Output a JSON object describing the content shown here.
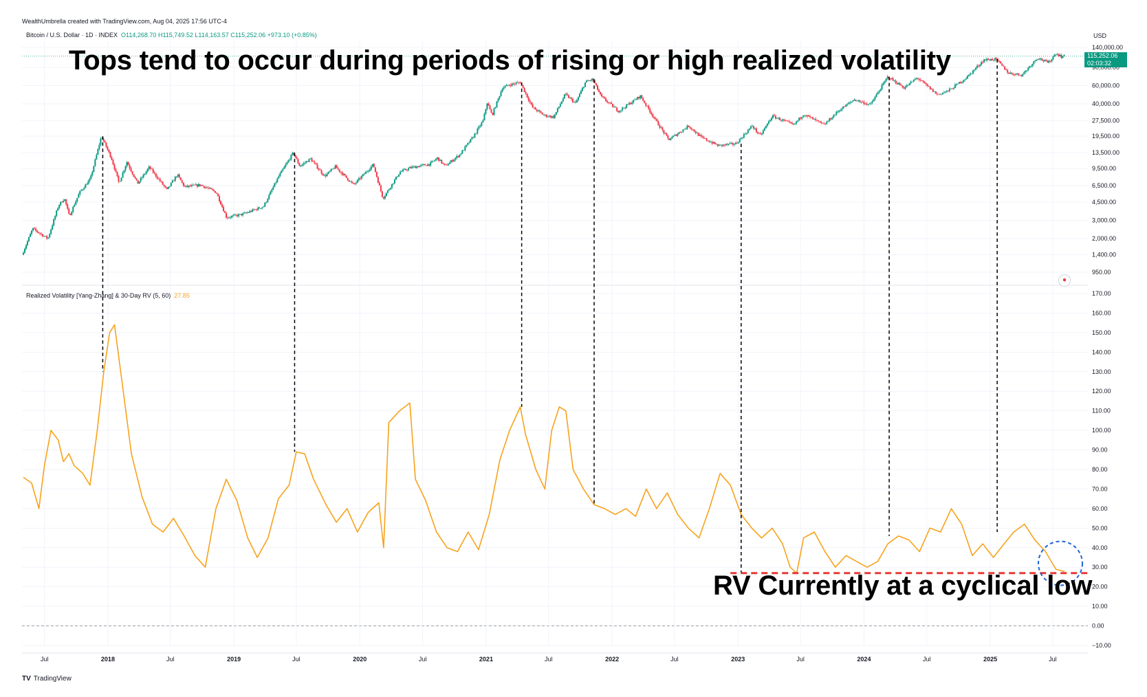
{
  "credit": "WealthUmbrella created with TradingView.com, Aug 04, 2025 17:56 UTC-4",
  "symbol": {
    "name": "Bitcoin / U.S. Dollar · 1D · INDEX",
    "open": "O114,268.70",
    "high": "H115,749.52",
    "low": "L114,163.57",
    "close": "C115,252.06",
    "change": "+973.10 (+0.85%)"
  },
  "currency": "USD",
  "price_tag": {
    "price": "115,252.06",
    "countdown": "02:03:32"
  },
  "annotations": {
    "title": "Tops tend to occur during periods of rising or high realized volatility",
    "note": "RV Currently at a cyclical low"
  },
  "indicator": {
    "name": "Realized Volatility [Yang-Zhang] & 30-Day RV (5, 60)",
    "value": "27.85"
  },
  "brand": {
    "logo": "TV",
    "name": "TradingView"
  },
  "colors": {
    "up": "#089981",
    "down": "#f23645",
    "rv_line": "#f7a21b",
    "low_line": "#e53935",
    "circle": "#1e63d6",
    "dashed_verticals": "#000000"
  },
  "icons": [
    "us-flag-icon"
  ],
  "chart_data": [
    {
      "type": "line",
      "name": "Bitcoin / U.S. Dollar · 1D · INDEX",
      "scale": "log",
      "y_ticks": [
        "140,000.00",
        "90,000.00",
        "60,000.00",
        "40,000.00",
        "27,500.00",
        "19,500.00",
        "13,500.00",
        "9,500.00",
        "6,500.00",
        "4,500.00",
        "3,000.00",
        "2,000.00",
        "1,400.00",
        "950.00"
      ],
      "x_ticks": [
        "Jul",
        "2018",
        "Jul",
        "2019",
        "Jul",
        "2020",
        "Jul",
        "2021",
        "Jul",
        "2022",
        "Jul",
        "2023",
        "Jul",
        "2024",
        "Jul",
        "2025",
        "Jul"
      ],
      "series": [
        {
          "values": [
            [
              "2017-05-01",
              1400
            ],
            [
              "2017-06-01",
              2500
            ],
            [
              "2017-07-15",
              2000
            ],
            [
              "2017-08-15",
              4200
            ],
            [
              "2017-09-01",
              4900
            ],
            [
              "2017-09-15",
              3300
            ],
            [
              "2017-10-15",
              5600
            ],
            [
              "2017-11-15",
              7500
            ],
            [
              "2017-12-17",
              19500
            ],
            [
              "2018-01-15",
              12000
            ],
            [
              "2018-02-06",
              6900
            ],
            [
              "2018-03-01",
              11000
            ],
            [
              "2018-04-01",
              6800
            ],
            [
              "2018-05-05",
              9800
            ],
            [
              "2018-06-25",
              5900
            ],
            [
              "2018-07-25",
              8300
            ],
            [
              "2018-08-15",
              6300
            ],
            [
              "2018-10-01",
              6600
            ],
            [
              "2018-11-15",
              5600
            ],
            [
              "2018-12-15",
              3200
            ],
            [
              "2019-02-01",
              3450
            ],
            [
              "2019-04-01",
              4100
            ],
            [
              "2019-05-15",
              8000
            ],
            [
              "2019-06-26",
              13500
            ],
            [
              "2019-07-15",
              10000
            ],
            [
              "2019-08-15",
              11800
            ],
            [
              "2019-09-25",
              8000
            ],
            [
              "2019-10-26",
              9900
            ],
            [
              "2019-12-18",
              6600
            ],
            [
              "2020-02-13",
              10400
            ],
            [
              "2020-03-12",
              4900
            ],
            [
              "2020-04-30",
              8800
            ],
            [
              "2020-06-01",
              9700
            ],
            [
              "2020-07-26",
              10500
            ],
            [
              "2020-08-17",
              12000
            ],
            [
              "2020-09-08",
              10000
            ],
            [
              "2020-10-21",
              13000
            ],
            [
              "2020-11-30",
              19500
            ],
            [
              "2020-12-27",
              27500
            ],
            [
              "2021-01-08",
              41000
            ],
            [
              "2021-01-22",
              31000
            ],
            [
              "2021-02-21",
              57000
            ],
            [
              "2021-03-13",
              61000
            ],
            [
              "2021-04-14",
              64500
            ],
            [
              "2021-05-19",
              37000
            ],
            [
              "2021-06-22",
              31000
            ],
            [
              "2021-07-20",
              29800
            ],
            [
              "2021-08-22",
              49500
            ],
            [
              "2021-09-21",
              40500
            ],
            [
              "2021-10-20",
              65000
            ],
            [
              "2021-11-10",
              69000
            ],
            [
              "2021-12-04",
              47000
            ],
            [
              "2022-01-24",
              34000
            ],
            [
              "2022-03-28",
              47500
            ],
            [
              "2022-05-12",
              27500
            ],
            [
              "2022-06-18",
              18000
            ],
            [
              "2022-08-15",
              24500
            ],
            [
              "2022-09-20",
              19000
            ],
            [
              "2022-11-09",
              15800
            ],
            [
              "2022-12-30",
              16500
            ],
            [
              "2023-02-15",
              24500
            ],
            [
              "2023-03-10",
              19600
            ],
            [
              "2023-04-14",
              30500
            ],
            [
              "2023-06-15",
              25000
            ],
            [
              "2023-07-14",
              31800
            ],
            [
              "2023-09-11",
              25000
            ],
            [
              "2023-10-24",
              34500
            ],
            [
              "2023-12-08",
              44000
            ],
            [
              "2024-01-23",
              39000
            ],
            [
              "2024-03-14",
              73000
            ],
            [
              "2024-05-01",
              57000
            ],
            [
              "2024-06-07",
              71500
            ],
            [
              "2024-08-05",
              49000
            ],
            [
              "2024-09-06",
              53500
            ],
            [
              "2024-10-29",
              72000
            ],
            [
              "2024-12-17",
              106000
            ],
            [
              "2025-01-21",
              108000
            ],
            [
              "2025-02-28",
              79000
            ],
            [
              "2025-04-07",
              76000
            ],
            [
              "2025-05-22",
              111800
            ],
            [
              "2025-06-22",
              99000
            ],
            [
              "2025-07-14",
              123000
            ],
            [
              "2025-08-01",
              113000
            ],
            [
              "2025-08-04",
              115252
            ]
          ]
        }
      ]
    },
    {
      "type": "line",
      "name": "Realized Volatility [Yang-Zhang] & 30-Day RV (5, 60)",
      "ylim": [
        -10,
        170
      ],
      "y_ticks": [
        "170.00",
        "160.00",
        "150.00",
        "140.00",
        "130.00",
        "120.00",
        "110.00",
        "100.00",
        "90.00",
        "80.00",
        "70.00",
        "60.00",
        "50.00",
        "40.00",
        "30.00",
        "20.00",
        "10.00",
        "0.00",
        "−10.00"
      ],
      "x_ticks": [
        "Jul",
        "2018",
        "Jul",
        "2019",
        "Jul",
        "2020",
        "Jul",
        "2021",
        "Jul",
        "2022",
        "Jul",
        "2023",
        "Jul",
        "2024",
        "Jul",
        "2025",
        "Jul"
      ],
      "series": [
        {
          "values": [
            [
              "2017-05-01",
              76
            ],
            [
              "2017-05-25",
              73
            ],
            [
              "2017-06-15",
              60
            ],
            [
              "2017-07-01",
              82
            ],
            [
              "2017-07-20",
              100
            ],
            [
              "2017-08-10",
              95
            ],
            [
              "2017-08-25",
              84
            ],
            [
              "2017-09-10",
              88
            ],
            [
              "2017-09-25",
              82
            ],
            [
              "2017-10-20",
              78
            ],
            [
              "2017-11-10",
              72
            ],
            [
              "2017-12-01",
              100
            ],
            [
              "2017-12-20",
              130
            ],
            [
              "2018-01-06",
              150
            ],
            [
              "2018-01-20",
              154
            ],
            [
              "2018-02-10",
              126
            ],
            [
              "2018-03-10",
              88
            ],
            [
              "2018-04-10",
              66
            ],
            [
              "2018-05-10",
              52
            ],
            [
              "2018-06-10",
              48
            ],
            [
              "2018-07-10",
              55
            ],
            [
              "2018-08-10",
              46
            ],
            [
              "2018-09-10",
              36
            ],
            [
              "2018-10-10",
              30
            ],
            [
              "2018-11-10",
              60
            ],
            [
              "2018-12-10",
              75
            ],
            [
              "2019-01-10",
              64
            ],
            [
              "2019-02-10",
              45
            ],
            [
              "2019-03-10",
              35
            ],
            [
              "2019-04-10",
              45
            ],
            [
              "2019-05-10",
              65
            ],
            [
              "2019-06-10",
              72
            ],
            [
              "2019-07-01",
              89
            ],
            [
              "2019-07-25",
              88
            ],
            [
              "2019-08-20",
              75
            ],
            [
              "2019-09-25",
              62
            ],
            [
              "2019-10-25",
              53
            ],
            [
              "2019-11-25",
              60
            ],
            [
              "2019-12-25",
              48
            ],
            [
              "2020-01-25",
              58
            ],
            [
              "2020-02-25",
              63
            ],
            [
              "2020-03-10",
              40
            ],
            [
              "2020-03-25",
              104
            ],
            [
              "2020-04-25",
              110
            ],
            [
              "2020-05-25",
              114
            ],
            [
              "2020-06-10",
              75
            ],
            [
              "2020-07-10",
              64
            ],
            [
              "2020-08-10",
              48
            ],
            [
              "2020-09-10",
              40
            ],
            [
              "2020-10-10",
              38
            ],
            [
              "2020-11-10",
              48
            ],
            [
              "2020-12-10",
              39
            ],
            [
              "2021-01-10",
              57
            ],
            [
              "2021-02-10",
              85
            ],
            [
              "2021-03-10",
              100
            ],
            [
              "2021-04-10",
              112
            ],
            [
              "2021-04-25",
              98
            ],
            [
              "2021-05-25",
              80
            ],
            [
              "2021-06-20",
              70
            ],
            [
              "2021-07-10",
              100
            ],
            [
              "2021-08-01",
              112
            ],
            [
              "2021-08-20",
              110
            ],
            [
              "2021-09-10",
              80
            ],
            [
              "2021-10-10",
              70
            ],
            [
              "2021-11-10",
              62
            ],
            [
              "2021-12-10",
              60
            ],
            [
              "2022-01-10",
              57
            ],
            [
              "2022-02-10",
              60
            ],
            [
              "2022-03-10",
              56
            ],
            [
              "2022-04-10",
              70
            ],
            [
              "2022-05-10",
              60
            ],
            [
              "2022-06-10",
              68
            ],
            [
              "2022-07-10",
              57
            ],
            [
              "2022-08-10",
              50
            ],
            [
              "2022-09-10",
              45
            ],
            [
              "2022-10-10",
              60
            ],
            [
              "2022-11-10",
              78
            ],
            [
              "2022-12-10",
              72
            ],
            [
              "2023-01-10",
              57
            ],
            [
              "2023-02-10",
              50
            ],
            [
              "2023-03-10",
              45
            ],
            [
              "2023-04-10",
              50
            ],
            [
              "2023-05-10",
              42
            ],
            [
              "2023-06-01",
              30
            ],
            [
              "2023-06-20",
              27
            ],
            [
              "2023-07-10",
              45
            ],
            [
              "2023-08-10",
              48
            ],
            [
              "2023-09-10",
              38
            ],
            [
              "2023-10-10",
              30
            ],
            [
              "2023-11-10",
              36
            ],
            [
              "2023-12-10",
              33
            ],
            [
              "2024-01-10",
              30
            ],
            [
              "2024-02-10",
              33
            ],
            [
              "2024-03-10",
              42
            ],
            [
              "2024-04-10",
              46
            ],
            [
              "2024-05-10",
              44
            ],
            [
              "2024-06-10",
              38
            ],
            [
              "2024-07-10",
              50
            ],
            [
              "2024-08-10",
              48
            ],
            [
              "2024-09-10",
              60
            ],
            [
              "2024-10-10",
              52
            ],
            [
              "2024-11-10",
              36
            ],
            [
              "2024-12-10",
              42
            ],
            [
              "2025-01-10",
              35
            ],
            [
              "2025-02-10",
              42
            ],
            [
              "2025-03-10",
              48
            ],
            [
              "2025-04-10",
              52
            ],
            [
              "2025-05-10",
              44
            ],
            [
              "2025-06-10",
              38
            ],
            [
              "2025-07-10",
              29
            ],
            [
              "2025-08-04",
              27.85
            ]
          ]
        }
      ]
    }
  ]
}
